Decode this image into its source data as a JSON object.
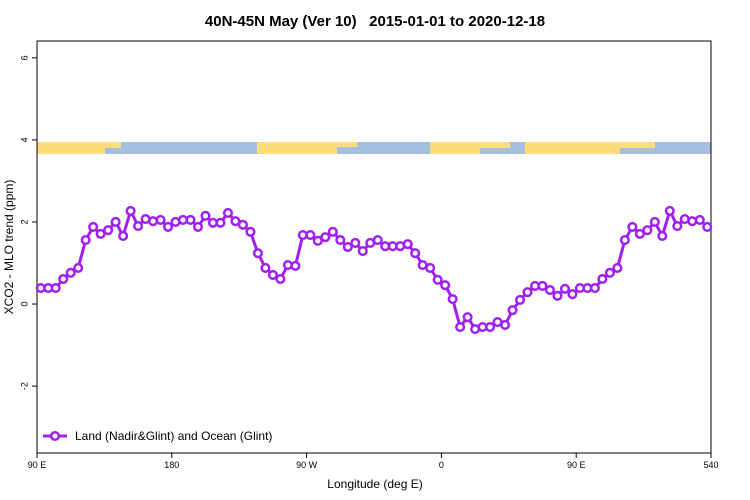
{
  "chart_data": {
    "type": "line",
    "title": "40N-45N May (Ver 10)   2015-01-01 to 2020-12-18",
    "x_label": "Longitude (deg E)",
    "y_label": "XCO2 - MLO trend (ppm)",
    "x": [
      92.5,
      97.5,
      102.5,
      107.5,
      112.5,
      117.5,
      122.5,
      127.5,
      132.5,
      137.5,
      142.5,
      147.5,
      152.5,
      157.5,
      162.5,
      167.5,
      172.5,
      177.5,
      182.5,
      187.5,
      192.5,
      197.5,
      202.5,
      207.5,
      212.5,
      217.5,
      222.5,
      227.5,
      232.5,
      237.5,
      242.5,
      247.5,
      252.5,
      257.5,
      262.5,
      267.5,
      272.5,
      277.5,
      282.5,
      287.5,
      292.5,
      297.5,
      302.5,
      307.5,
      312.5,
      317.5,
      322.5,
      327.5,
      332.5,
      337.5,
      342.5,
      347.5,
      352.5,
      357.5,
      362.5,
      367.5,
      372.5,
      377.5,
      382.5,
      387.5,
      392.5,
      397.5,
      402.5,
      407.5,
      412.5,
      417.5,
      422.5,
      427.5,
      432.5,
      437.5,
      442.5,
      447.5,
      452.5,
      457.5,
      462.5,
      467.5,
      472.5,
      477.5,
      482.5,
      487.5,
      492.5,
      497.5,
      502.5,
      507.5,
      512.5,
      517.5,
      522.5,
      527.5,
      532.5,
      537.5
    ],
    "series": [
      {
        "name": "Land (Nadir&Glint) and Ocean (Glint)",
        "color": "#a020f0",
        "values": [
          0.39,
          0.39,
          0.39,
          0.61,
          0.76,
          0.88,
          1.56,
          1.88,
          1.71,
          1.8,
          2.0,
          1.66,
          2.27,
          1.9,
          2.07,
          2.02,
          2.05,
          1.88,
          2.0,
          2.05,
          2.05,
          1.88,
          2.15,
          1.98,
          1.98,
          2.22,
          2.02,
          1.93,
          1.76,
          1.24,
          0.88,
          0.71,
          0.61,
          0.95,
          0.93,
          1.68,
          1.68,
          1.54,
          1.63,
          1.76,
          1.56,
          1.39,
          1.49,
          1.29,
          1.49,
          1.56,
          1.41,
          1.41,
          1.41,
          1.46,
          1.24,
          0.95,
          0.88,
          0.59,
          0.46,
          0.12,
          -0.56,
          -0.32,
          -0.61,
          -0.56,
          -0.56,
          -0.44,
          -0.51,
          -0.15,
          0.1,
          0.29,
          0.44,
          0.44,
          0.34,
          0.2,
          0.37,
          0.24,
          0.39,
          0.39,
          0.39,
          0.61,
          0.76,
          0.88,
          1.56,
          1.88,
          1.71,
          1.8,
          2.0,
          1.66,
          2.27,
          1.9,
          2.07,
          2.02,
          2.05,
          1.88
        ]
      }
    ],
    "xlim": [
      90,
      540
    ],
    "xticks": [
      {
        "value": 90,
        "label": "90 E"
      },
      180,
      {
        "value": 270,
        "label": "90 W"
      },
      {
        "value": 360,
        "label": "0"
      },
      {
        "value": 450,
        "label": "90 E"
      },
      540
    ],
    "ylim": [
      -3.63,
      6.41
    ],
    "yticks": [
      -2,
      0,
      2,
      4,
      6
    ],
    "legend": "bottomleft"
  }
}
